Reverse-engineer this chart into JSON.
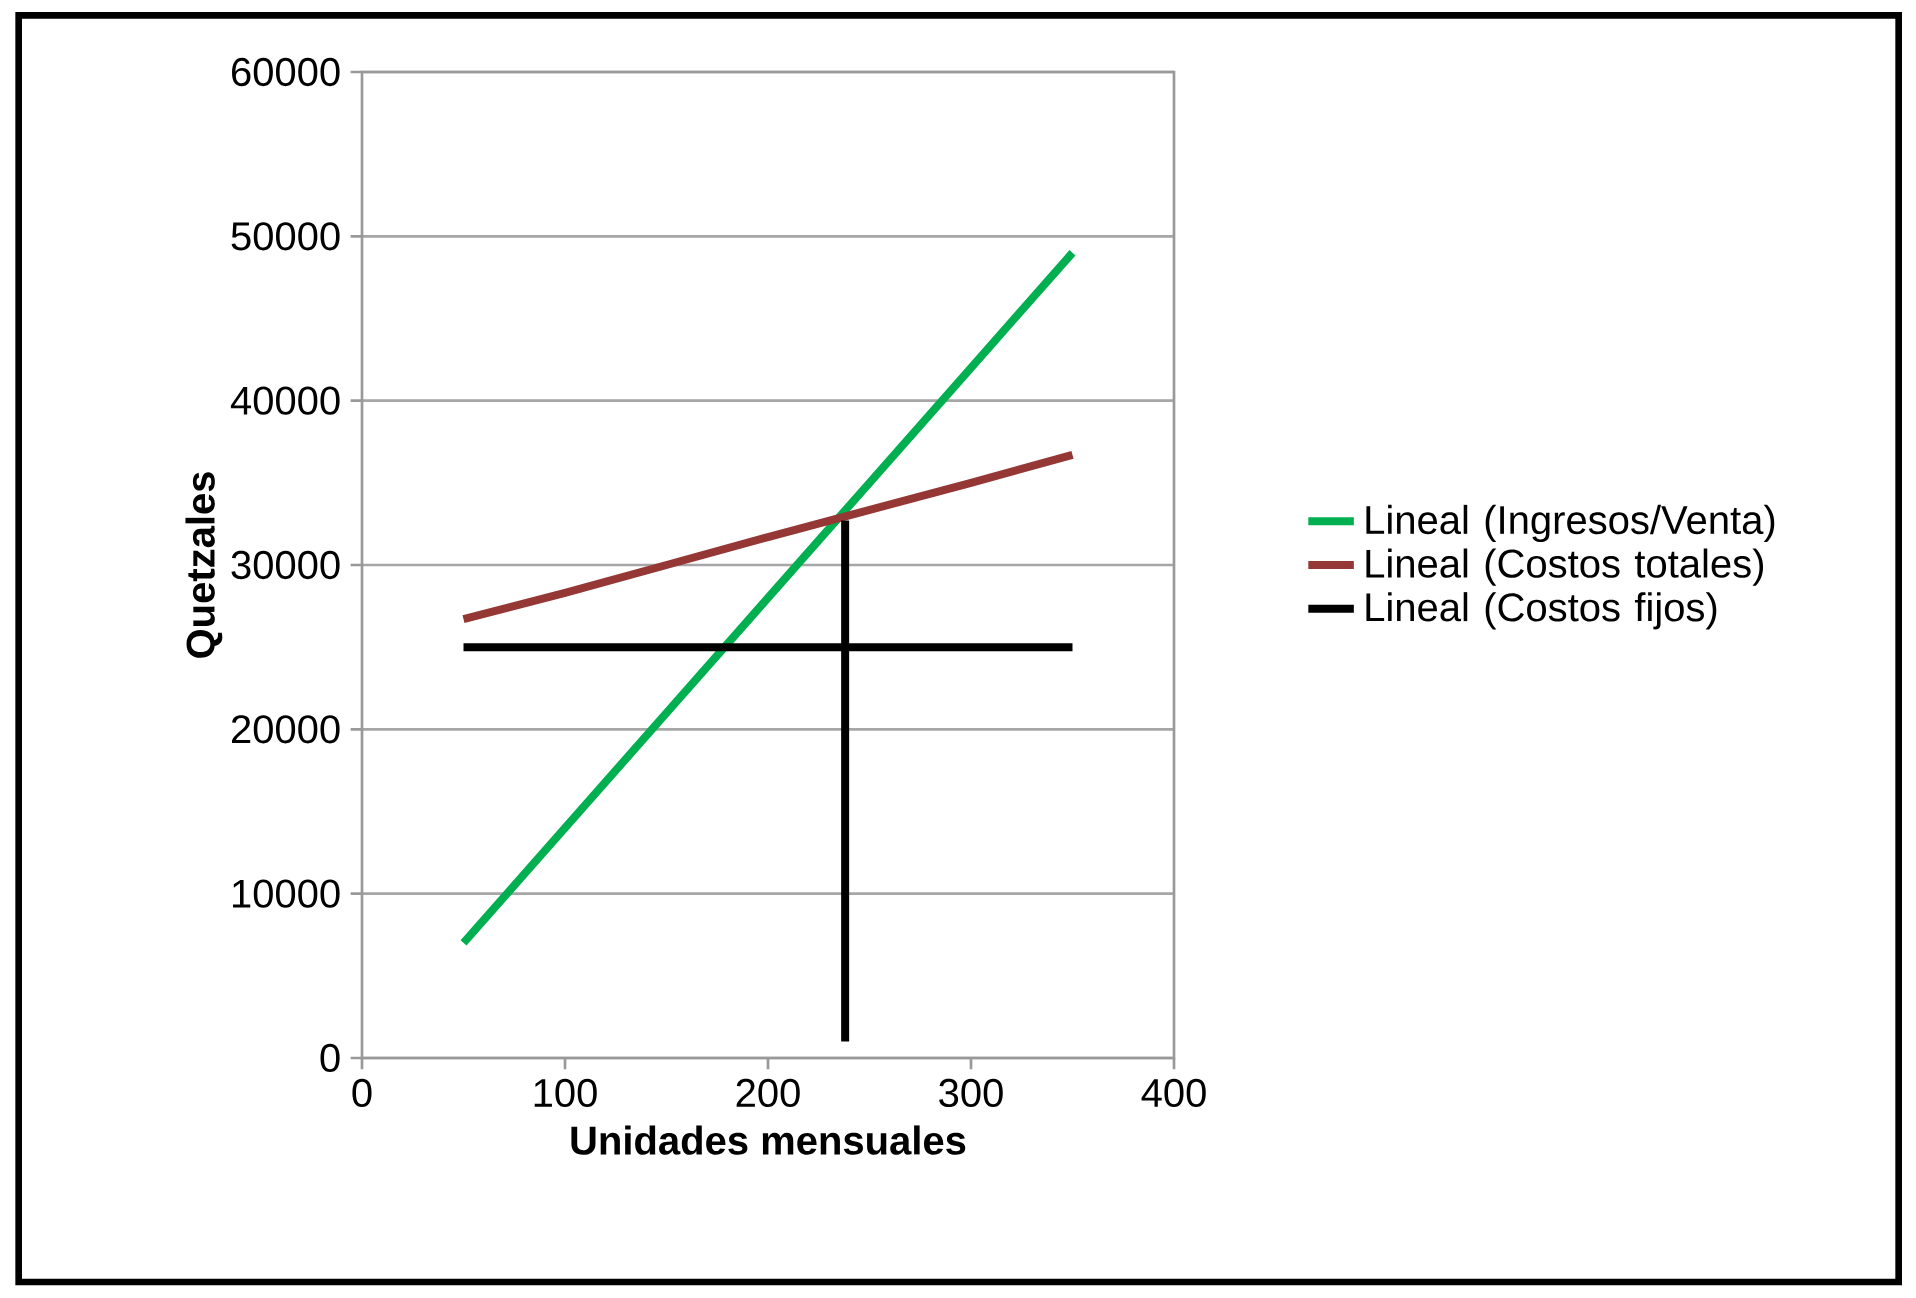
{
  "chart_data": {
    "type": "line",
    "xlabel": "Unidades mensuales",
    "ylabel": "Quetzales",
    "xlim": [
      0,
      400
    ],
    "xticks": [
      0,
      100,
      200,
      300,
      400
    ],
    "ylim": [
      0,
      60000
    ],
    "yticks": [
      0,
      10000,
      20000,
      30000,
      40000,
      50000,
      60000
    ],
    "grid": "y",
    "legend": "right",
    "series": [
      {
        "name": "Lineal (Ingresos/Venta)",
        "color": "#00b050",
        "x": [
          50,
          100,
          150,
          200,
          250,
          300,
          350
        ],
        "values": [
          7000,
          14000,
          21000,
          28000,
          35000,
          42000,
          49000
        ]
      },
      {
        "name": "Lineal (Costos totales)",
        "color": "#953735",
        "x": [
          50,
          100,
          150,
          200,
          300,
          350
        ],
        "values": [
          26700,
          28300,
          30000,
          31700,
          35000,
          36700
        ]
      },
      {
        "name": "Lineal (Costos fijos)",
        "color": "#000000",
        "x": [
          50,
          100,
          150,
          200,
          300,
          350
        ],
        "values": [
          25000,
          25000,
          25000,
          25000,
          25000,
          25000
        ]
      },
      {
        "color": "#000000",
        "x": [
          238,
          238
        ],
        "values": [
          1000,
          32700
        ]
      }
    ]
  }
}
